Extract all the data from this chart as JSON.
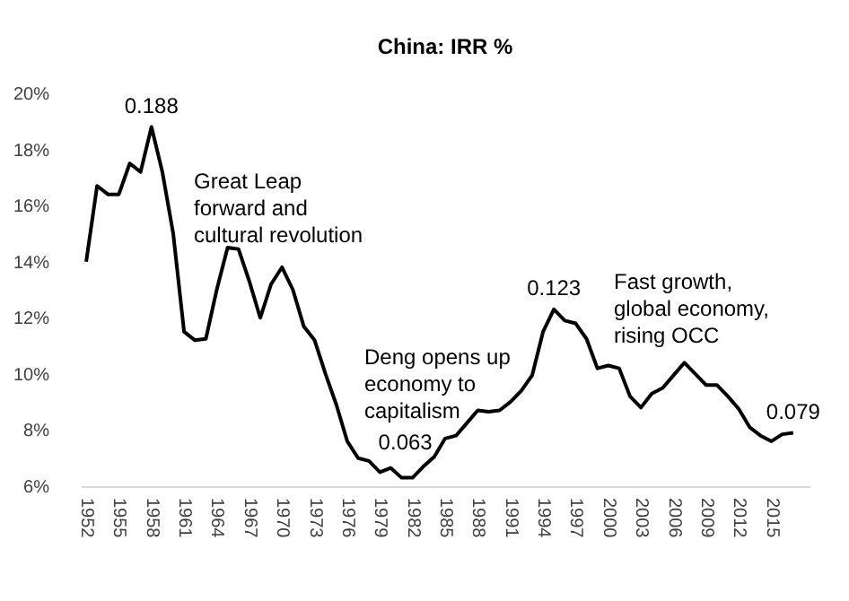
{
  "chart_data": {
    "type": "line",
    "title": "China: IRR %",
    "x": [
      1952,
      1953,
      1954,
      1955,
      1956,
      1957,
      1958,
      1959,
      1960,
      1961,
      1962,
      1963,
      1964,
      1965,
      1966,
      1967,
      1968,
      1969,
      1970,
      1971,
      1972,
      1973,
      1974,
      1975,
      1976,
      1977,
      1978,
      1979,
      1980,
      1981,
      1982,
      1983,
      1984,
      1985,
      1986,
      1987,
      1988,
      1989,
      1990,
      1991,
      1992,
      1993,
      1994,
      1995,
      1996,
      1997,
      1998,
      1999,
      2000,
      2001,
      2002,
      2003,
      2004,
      2005,
      2006,
      2007,
      2008,
      2009,
      2010,
      2011,
      2012,
      2013,
      2014,
      2015,
      2016,
      2017
    ],
    "series": [
      {
        "color": "#000000",
        "values": [
          14.0,
          16.7,
          16.4,
          16.4,
          17.5,
          17.2,
          18.8,
          17.2,
          15.0,
          11.5,
          11.2,
          11.25,
          13.0,
          14.5,
          14.45,
          13.3,
          12.0,
          13.2,
          13.8,
          13.0,
          11.7,
          11.2,
          10.0,
          8.9,
          7.6,
          7.0,
          6.9,
          6.5,
          6.65,
          6.3,
          6.3,
          6.7,
          7.05,
          7.7,
          7.8,
          8.25,
          8.7,
          8.65,
          8.7,
          9.0,
          9.4,
          9.95,
          11.5,
          12.3,
          11.9,
          11.8,
          11.25,
          10.2,
          10.3,
          10.2,
          9.2,
          8.8,
          9.3,
          9.5,
          9.95,
          10.4,
          10.0,
          9.6,
          9.6,
          9.2,
          8.75,
          8.1,
          7.8,
          7.6,
          7.85,
          7.9
        ]
      }
    ],
    "xlim": [
      1951.5,
      2018.5
    ],
    "xticks": [
      1952,
      1955,
      1958,
      1961,
      1964,
      1967,
      1970,
      1973,
      1976,
      1979,
      1982,
      1985,
      1988,
      1991,
      1994,
      1997,
      2000,
      2003,
      2006,
      2009,
      2012,
      2015
    ],
    "ylim": [
      6,
      20
    ],
    "yticks": [
      {
        "value": 6,
        "label": "6%"
      },
      {
        "value": 8,
        "label": "8%"
      },
      {
        "value": 10,
        "label": "10%"
      },
      {
        "value": 12,
        "label": "12%"
      },
      {
        "value": 14,
        "label": "14%"
      },
      {
        "value": 16,
        "label": "16%"
      },
      {
        "value": 18,
        "label": "18%"
      },
      {
        "value": 20,
        "label": "20%"
      }
    ],
    "grid": false,
    "legend": false,
    "marker": "none",
    "line_style": "solid",
    "annotations": [
      {
        "text": "0.188",
        "x": 1958,
        "y": 18.8
      },
      {
        "text": "0.063",
        "x": 1982,
        "y": 6.3
      },
      {
        "text": "0.123",
        "x": 1995,
        "y": 12.3
      },
      {
        "text": "0.079",
        "x": 2017,
        "y": 7.9
      },
      "Great Leap forward and cultural revolution",
      "Deng opens up economy to capitalism",
      "Fast growth, global economy, rising OCC"
    ]
  }
}
